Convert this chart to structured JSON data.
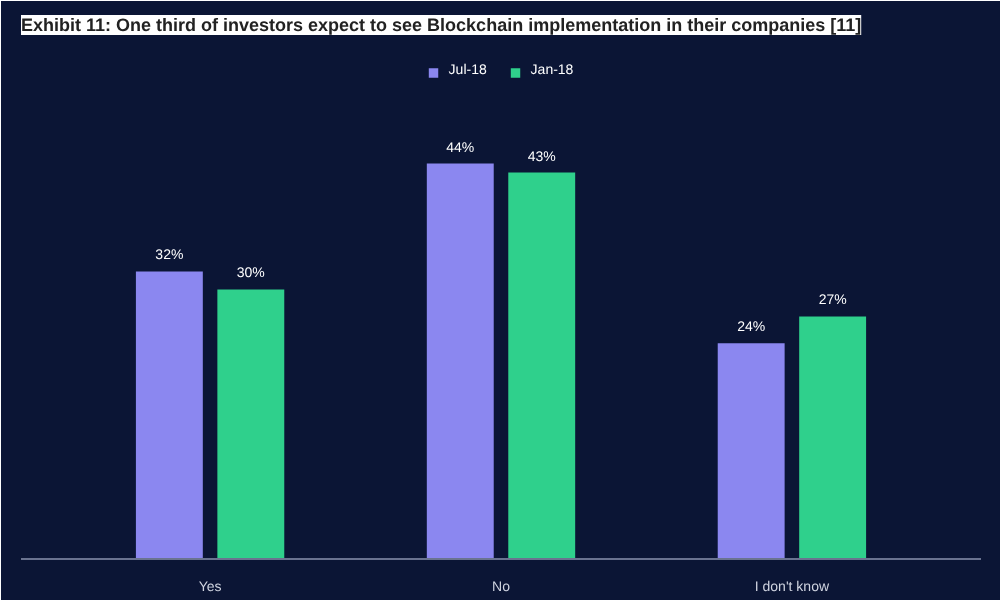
{
  "chart_data": {
    "type": "bar",
    "title": "Exhibit 11: One third of investors expect to see Blockchain implementation in their companies [11]",
    "categories": [
      "Yes",
      "No",
      "I don't know"
    ],
    "series": [
      {
        "name": "Jul-18",
        "color": "#8b87f0",
        "values": [
          32,
          44,
          24
        ],
        "value_labels": [
          "32%",
          "44%",
          "24%"
        ]
      },
      {
        "name": "Jan-18",
        "color": "#2fd08c",
        "values": [
          30,
          43,
          27
        ],
        "value_labels": [
          "30%",
          "43%",
          "27%"
        ]
      }
    ],
    "legend": "top",
    "grid": false
  }
}
